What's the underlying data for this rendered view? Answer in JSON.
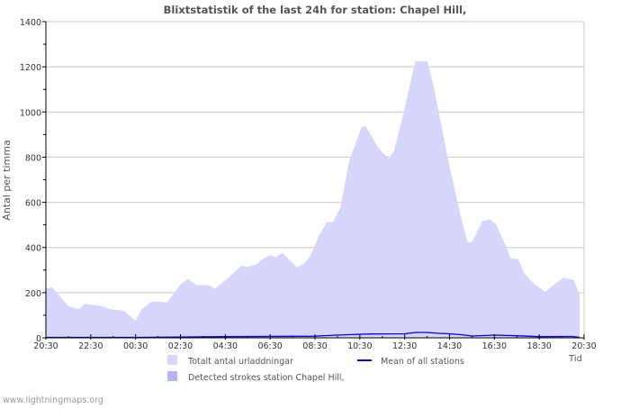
{
  "footer": "www.lightningmaps.org",
  "chart_data": {
    "type": "area",
    "title": "Blixtstatistik of the last 24h for station: Chapel Hill,",
    "xlabel": "Tid",
    "ylabel": "Antal per timma",
    "ylim": [
      0,
      1400
    ],
    "xlim_hours": [
      0,
      24
    ],
    "yticks": [
      0,
      200,
      400,
      600,
      800,
      1000,
      1200,
      1400
    ],
    "xtick_labels": [
      "20:30",
      "22:30",
      "00:30",
      "02:30",
      "04:30",
      "06:30",
      "08:30",
      "10:30",
      "12:30",
      "14:30",
      "16:30",
      "18:30",
      "20:30"
    ],
    "grid": true,
    "legend_placement": "bottom",
    "legend": [
      "Totalt antal urladdningar",
      "Mean of all stations",
      "Detected strokes station Chapel Hill,"
    ],
    "colors": {
      "total": "#d6d6fc",
      "detected": "#b4b4f4",
      "mean": "#0000ee"
    },
    "series": [
      {
        "name": "Totalt antal urladdningar",
        "hours_since_start": [
          0,
          0.27,
          1.0,
          1.47,
          1.73,
          2.47,
          2.87,
          3.47,
          4.0,
          4.27,
          4.73,
          5.4,
          6.0,
          6.33,
          6.73,
          7.27,
          7.53,
          8.07,
          8.73,
          9.0,
          9.4,
          9.73,
          10.0,
          10.27,
          10.53,
          11.2,
          11.53,
          11.8,
          12.2,
          12.53,
          12.8,
          13.13,
          13.53,
          14.07,
          14.27,
          14.8,
          15.27,
          15.53,
          16.0,
          16.47,
          17.0,
          17.27,
          17.93,
          18.47,
          18.8,
          19.0,
          19.47,
          19.8,
          20.07,
          20.47,
          20.73,
          21.07,
          21.33,
          21.8,
          22.27,
          22.6,
          23.07,
          23.53,
          23.8
        ],
        "values": [
          217,
          224,
          140,
          127,
          150,
          141,
          127,
          121,
          75,
          127,
          161,
          157,
          237,
          260,
          233,
          233,
          217,
          260,
          320,
          313,
          327,
          353,
          367,
          357,
          377,
          311,
          331,
          364,
          457,
          513,
          513,
          577,
          784,
          933,
          937,
          844,
          791,
          831,
          1017,
          1224,
          1224,
          1124,
          791,
          551,
          424,
          424,
          517,
          524,
          504,
          417,
          351,
          348,
          284,
          237,
          204,
          231,
          267,
          257,
          191
        ]
      },
      {
        "name": "Detected strokes station Chapel Hill,",
        "hours_since_start": [
          0,
          23.8
        ],
        "values": [
          0,
          0
        ]
      },
      {
        "name": "Mean of all stations",
        "hours_since_start": [
          0,
          4.0,
          4.1,
          8.0,
          12.0,
          12.5,
          13.5,
          14.5,
          16.0,
          16.5,
          17.0,
          17.5,
          18.0,
          18.5,
          19.0,
          20.0,
          21.0,
          22.0,
          23.5,
          23.8
        ],
        "values": [
          2,
          2,
          2,
          5,
          7,
          10,
          14,
          17,
          18,
          24,
          24,
          20,
          18,
          14,
          8,
          12,
          9,
          5,
          6,
          2
        ]
      }
    ]
  }
}
